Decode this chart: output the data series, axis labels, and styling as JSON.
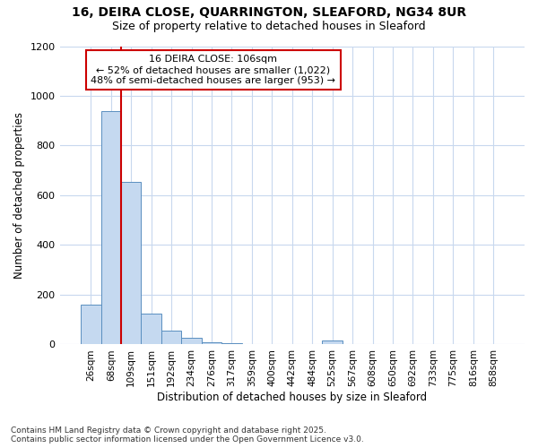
{
  "title_line1": "16, DEIRA CLOSE, QUARRINGTON, SLEAFORD, NG34 8UR",
  "title_line2": "Size of property relative to detached houses in Sleaford",
  "xlabel": "Distribution of detached houses by size in Sleaford",
  "ylabel": "Number of detached properties",
  "categories": [
    "26sqm",
    "68sqm",
    "109sqm",
    "151sqm",
    "192sqm",
    "234sqm",
    "276sqm",
    "317sqm",
    "359sqm",
    "400sqm",
    "442sqm",
    "484sqm",
    "525sqm",
    "567sqm",
    "608sqm",
    "650sqm",
    "692sqm",
    "733sqm",
    "775sqm",
    "816sqm",
    "858sqm"
  ],
  "values": [
    160,
    940,
    655,
    125,
    57,
    28,
    10,
    5,
    0,
    0,
    0,
    0,
    15,
    0,
    0,
    0,
    0,
    0,
    0,
    0,
    0
  ],
  "bar_color": "#c5d9f0",
  "bar_edge_color": "#5a8fc0",
  "red_line_index": 2,
  "annotation_text": "16 DEIRA CLOSE: 106sqm\n← 52% of detached houses are smaller (1,022)\n48% of semi-detached houses are larger (953) →",
  "annotation_box_color": "#ffffff",
  "annotation_box_edge": "#cc0000",
  "background_color": "#ffffff",
  "plot_bg_color": "#ffffff",
  "grid_color": "#c8d8ee",
  "footer_line1": "Contains HM Land Registry data © Crown copyright and database right 2025.",
  "footer_line2": "Contains public sector information licensed under the Open Government Licence v3.0.",
  "ylim": [
    0,
    1200
  ],
  "yticks": [
    0,
    200,
    400,
    600,
    800,
    1000,
    1200
  ]
}
